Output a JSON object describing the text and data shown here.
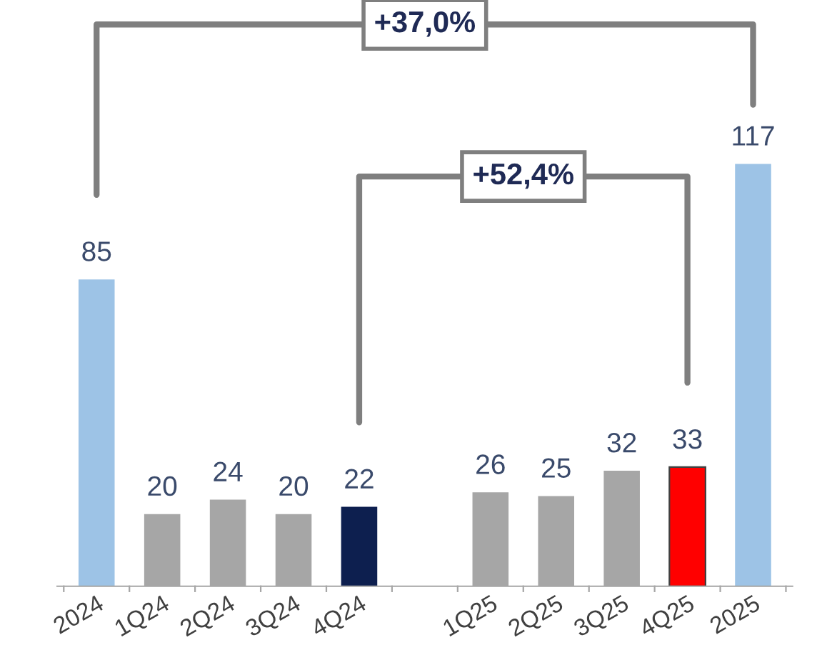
{
  "chart_data": {
    "type": "bar",
    "categories": [
      "2024",
      "1Q24",
      "2Q24",
      "3Q24",
      "4Q24",
      null,
      "1Q25",
      "2Q25",
      "3Q25",
      "4Q25",
      "2025"
    ],
    "values": [
      85,
      20,
      24,
      20,
      22,
      null,
      26,
      25,
      32,
      33,
      117
    ],
    "colors": [
      "#9dc3e6",
      "#a6a6a6",
      "#a6a6a6",
      "#a6a6a6",
      "#0d1f4f",
      null,
      "#a6a6a6",
      "#a6a6a6",
      "#a6a6a6",
      "#ff0000",
      "#9dc3e6"
    ],
    "data_labels": true,
    "annotations": [
      "+37,0%",
      "+52,4%"
    ],
    "grid": false,
    "legend": false
  }
}
